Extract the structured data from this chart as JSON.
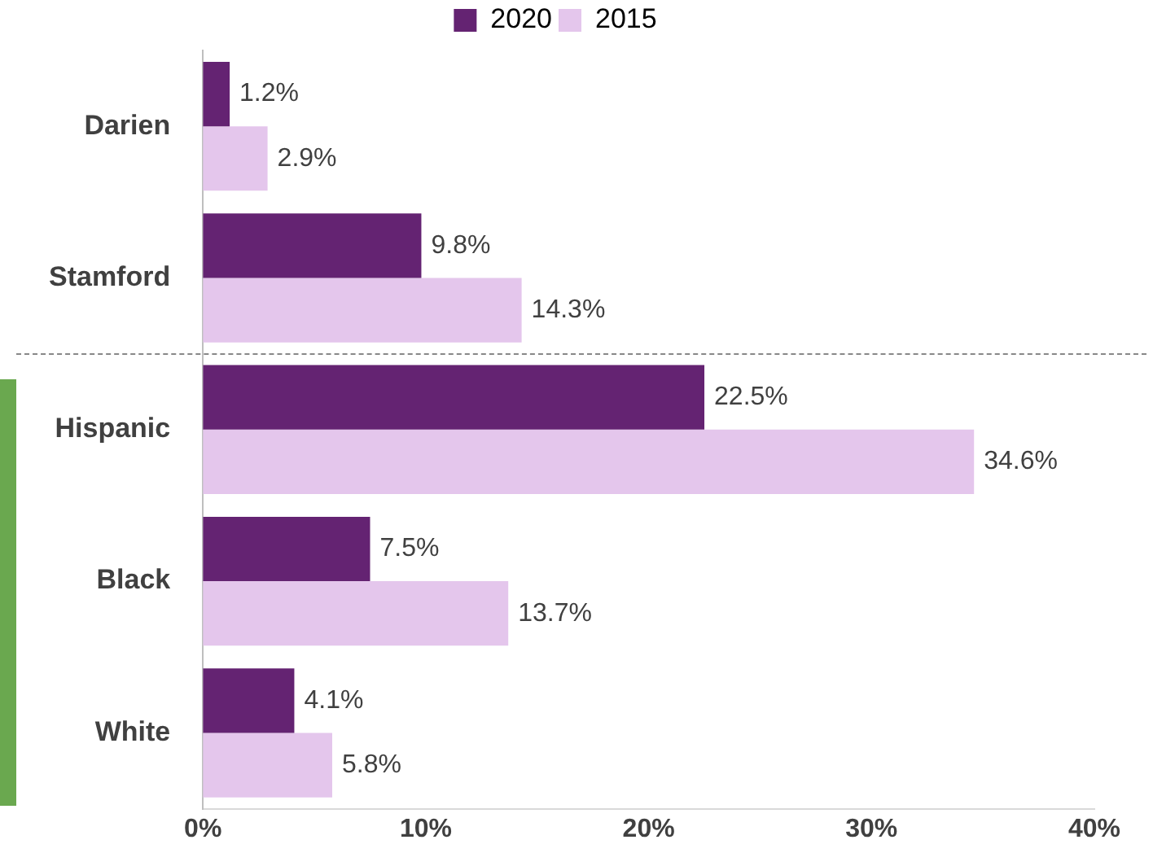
{
  "chart_data": {
    "type": "bar",
    "orientation": "horizontal",
    "categories": [
      "Darien",
      "Stamford",
      "Hispanic",
      "Black",
      "White"
    ],
    "series": [
      {
        "name": "2020",
        "color": "#642372",
        "values": [
          1.2,
          9.8,
          22.5,
          7.5,
          4.1
        ],
        "value_labels": [
          "1.2%",
          "9.8%",
          "22.5%",
          "7.5%",
          "4.1%"
        ]
      },
      {
        "name": "2015",
        "color": "#e4c6ec",
        "values": [
          2.9,
          14.3,
          34.6,
          13.7,
          5.8
        ],
        "value_labels": [
          "2.9%",
          "14.3%",
          "34.6%",
          "13.7%",
          "5.8%"
        ]
      }
    ],
    "xlim": [
      0,
      40
    ],
    "xticks": [
      {
        "value": 0,
        "label": "0%"
      },
      {
        "value": 10,
        "label": "10%"
      },
      {
        "value": 20,
        "label": "20%"
      },
      {
        "value": 30,
        "label": "30%"
      },
      {
        "value": 40,
        "label": "40%"
      }
    ],
    "grid": false,
    "legend": "top"
  }
}
